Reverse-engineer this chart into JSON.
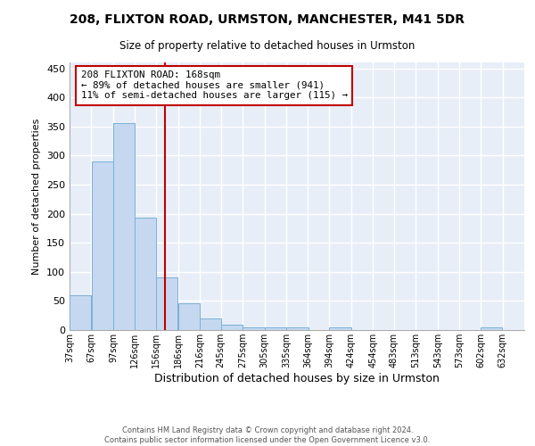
{
  "title1": "208, FLIXTON ROAD, URMSTON, MANCHESTER, M41 5DR",
  "title2": "Size of property relative to detached houses in Urmston",
  "xlabel": "Distribution of detached houses by size in Urmston",
  "ylabel": "Number of detached properties",
  "footer1": "Contains HM Land Registry data © Crown copyright and database right 2024.",
  "footer2": "Contains public sector information licensed under the Open Government Licence v3.0.",
  "annotation_line1": "208 FLIXTON ROAD: 168sqm",
  "annotation_line2": "← 89% of detached houses are smaller (941)",
  "annotation_line3": "11% of semi-detached houses are larger (115) →",
  "bar_left_edges": [
    37,
    67,
    97,
    126,
    156,
    186,
    216,
    245,
    275,
    305,
    335,
    364,
    394,
    424,
    454,
    483,
    513,
    543,
    573,
    602
  ],
  "bar_heights": [
    60,
    290,
    355,
    193,
    91,
    46,
    20,
    9,
    5,
    5,
    5,
    0,
    5,
    0,
    0,
    0,
    0,
    0,
    0,
    5
  ],
  "bin_width": 30,
  "bar_color": "#c5d8f0",
  "bar_edge_color": "#7ab0d8",
  "vline_color": "#c00000",
  "vline_x": 168,
  "annotation_box_color": "#c00000",
  "background_color": "#e8eef8",
  "grid_color": "#ffffff",
  "ylim": [
    0,
    460
  ],
  "yticks": [
    0,
    50,
    100,
    150,
    200,
    250,
    300,
    350,
    400,
    450
  ],
  "xlim_left": 37,
  "xlim_right": 662,
  "tick_labels": [
    "37sqm",
    "67sqm",
    "97sqm",
    "126sqm",
    "156sqm",
    "186sqm",
    "216sqm",
    "245sqm",
    "275sqm",
    "305sqm",
    "335sqm",
    "364sqm",
    "394sqm",
    "424sqm",
    "454sqm",
    "483sqm",
    "513sqm",
    "543sqm",
    "573sqm",
    "602sqm",
    "632sqm"
  ]
}
